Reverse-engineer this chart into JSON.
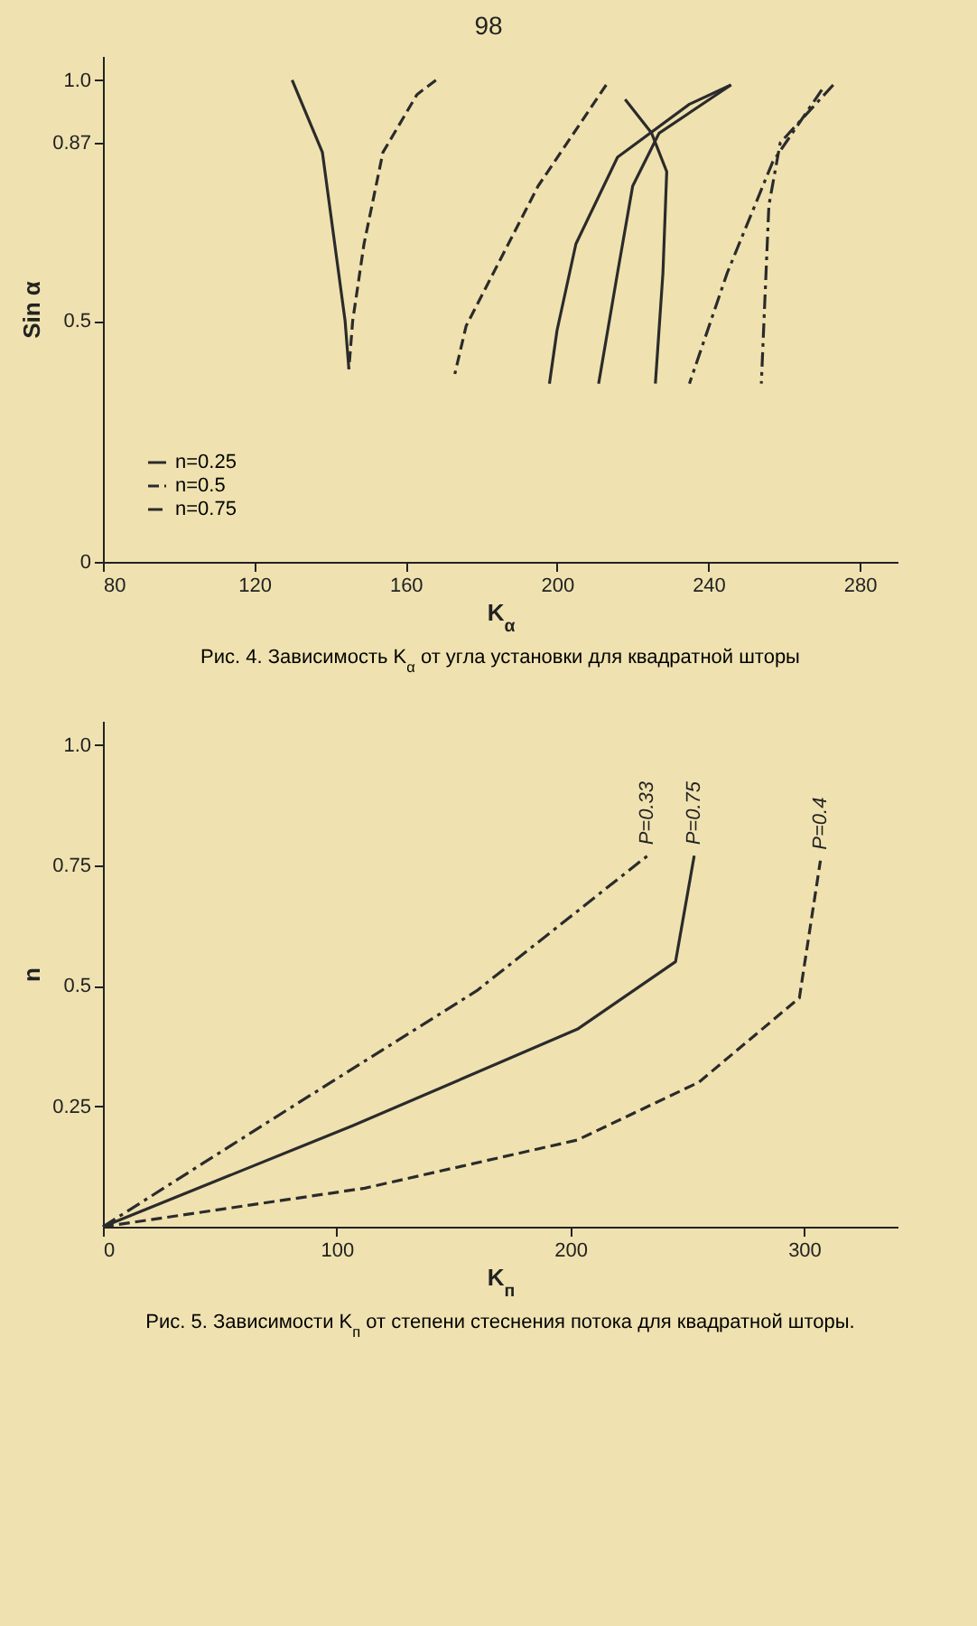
{
  "chart_data": [
    {
      "type": "line",
      "title": "Рис. 4. Зависимость K$_{α}$ от угла установки для квадратной шторы",
      "xlabel": "K$_{α}$",
      "ylabel": "Sin α",
      "annotations": [
        "98"
      ],
      "xlim": [
        80,
        290
      ],
      "xticks": [
        80,
        120,
        160,
        200,
        240,
        280
      ],
      "ylim": [
        0,
        1.05
      ],
      "yticks": [
        0,
        0.5,
        0.87,
        {
          "value": 1,
          "label": "1.0"
        }
      ],
      "grid": false,
      "legend": "bottom left",
      "series": [
        {
          "name": "n=0.25",
          "color": "#2b2b2b",
          "line_style": "solid",
          "x": [
            130,
            138,
            144,
            145
          ],
          "values": [
            1.0,
            0.85,
            0.5,
            0.4
          ]
        },
        {
          "color": "#2b2b2b",
          "line_style": "solid",
          "x": [
            246,
            235,
            216,
            205,
            200,
            198
          ],
          "values": [
            0.99,
            0.95,
            0.84,
            0.66,
            0.48,
            0.37
          ]
        },
        {
          "color": "#2b2b2b",
          "line_style": "solid",
          "x": [
            246,
            227,
            220,
            216,
            211
          ],
          "values": [
            0.99,
            0.89,
            0.78,
            0.6,
            0.37
          ]
        },
        {
          "color": "#2b2b2b",
          "line_style": "solid",
          "x": [
            218,
            225,
            229,
            228,
            226
          ],
          "values": [
            0.96,
            0.89,
            0.81,
            0.6,
            0.37
          ]
        },
        {
          "name": "n=0.5",
          "color": "#2b2b2b",
          "line_style": "dashed",
          "x": [
            168,
            163,
            154,
            149,
            146,
            145
          ],
          "values": [
            1.0,
            0.97,
            0.85,
            0.66,
            0.5,
            0.4
          ]
        },
        {
          "color": "#2b2b2b",
          "line_style": "dashed",
          "x": [
            213,
            195,
            176,
            173
          ],
          "values": [
            0.99,
            0.78,
            0.49,
            0.39
          ]
        },
        {
          "name": "n=0.75",
          "color": "#2b2b2b",
          "line_style": "dashdot",
          "x": [
            273,
            259,
            256,
            254
          ],
          "values": [
            0.99,
            0.87,
            0.74,
            0.37
          ]
        },
        {
          "color": "#2b2b2b",
          "line_style": "dashdot",
          "x": [
            270,
            257,
            245,
            235
          ],
          "values": [
            0.98,
            0.83,
            0.6,
            0.37
          ]
        }
      ]
    },
    {
      "type": "line",
      "title": "Рис. 5. Зависимости K$_{п}$ от степени стеснения потока для квадратной шторы.",
      "xlabel": "K$_{п}$",
      "ylabel": "n",
      "xlim": [
        0,
        340
      ],
      "xticks": [
        0,
        100,
        200,
        300
      ],
      "ylim": [
        0,
        1.05
      ],
      "yticks": [
        0.25,
        0.5,
        0.75,
        {
          "value": 1,
          "label": "1.0"
        }
      ],
      "grid": false,
      "legend": false,
      "series": [
        {
          "name": "P=0.33",
          "color": "#2b2b2b",
          "line_style": "dashdot",
          "x": [
            0,
            78,
            160,
            233
          ],
          "values": [
            0,
            0.24,
            0.49,
            0.77
          ]
        },
        {
          "name": "P=0.75",
          "color": "#2b2b2b",
          "line_style": "solid",
          "x": [
            0,
            107,
            203,
            245,
            253
          ],
          "values": [
            0,
            0.21,
            0.41,
            0.55,
            0.77
          ]
        },
        {
          "name": "P=0.4",
          "color": "#2b2b2b",
          "line_style": "dashed",
          "x": [
            0,
            112,
            203,
            255,
            298,
            307
          ],
          "values": [
            0,
            0.08,
            0.18,
            0.3,
            0.475,
            0.76
          ]
        }
      ]
    }
  ]
}
